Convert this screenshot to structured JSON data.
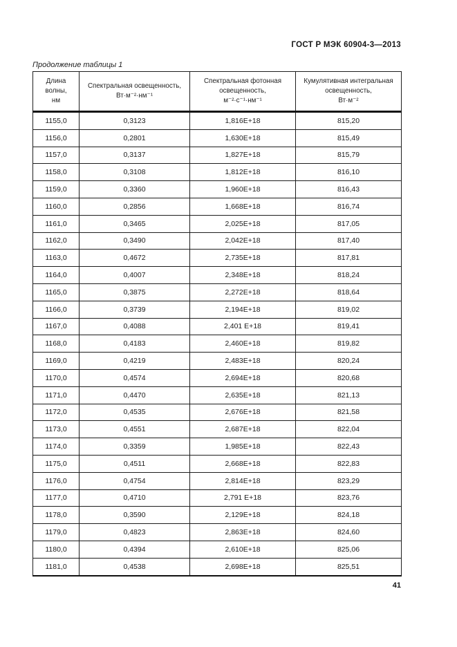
{
  "page": {
    "doc_code": "ГОСТ Р МЭК 60904-3—2013",
    "table_caption": "Продолжение таблицы 1",
    "page_number": "41"
  },
  "table": {
    "columns": [
      {
        "lines": [
          "Длина",
          "волны,",
          "нм"
        ]
      },
      {
        "lines": [
          "Спектральная освещенность,",
          "Вт·м⁻²·нм⁻¹"
        ]
      },
      {
        "lines": [
          "Спектральная фотонная",
          "освещенность,",
          "м⁻²·с⁻¹·нм⁻¹"
        ]
      },
      {
        "lines": [
          "Кумулятивная интегральная",
          "освещенность,",
          "Вт·м⁻²"
        ]
      }
    ],
    "rows": [
      [
        "1155,0",
        "0,3123",
        "1,816E+18",
        "815,20"
      ],
      [
        "1156,0",
        "0,2801",
        "1,630E+18",
        "815,49"
      ],
      [
        "1157,0",
        "0,3137",
        "1,827E+18",
        "815,79"
      ],
      [
        "1158,0",
        "0,3108",
        "1,812E+18",
        "816,10"
      ],
      [
        "1159,0",
        "0,3360",
        "1,960E+18",
        "816,43"
      ],
      [
        "1160,0",
        "0,2856",
        "1,668E+18",
        "816,74"
      ],
      [
        "1161,0",
        "0,3465",
        "2,025E+18",
        "817,05"
      ],
      [
        "1162,0",
        "0,3490",
        "2,042E+18",
        "817,40"
      ],
      [
        "1163,0",
        "0,4672",
        "2,735E+18",
        "817,81"
      ],
      [
        "1164,0",
        "0,4007",
        "2,348E+18",
        "818,24"
      ],
      [
        "1165,0",
        "0,3875",
        "2,272E+18",
        "818,64"
      ],
      [
        "1166,0",
        "0,3739",
        "2,194E+18",
        "819,02"
      ],
      [
        "1167,0",
        "0,4088",
        "2,401 E+18",
        "819,41"
      ],
      [
        "1168,0",
        "0,4183",
        "2,460E+18",
        "819,82"
      ],
      [
        "1169,0",
        "0,4219",
        "2,483E+18",
        "820,24"
      ],
      [
        "1170,0",
        "0,4574",
        "2,694E+18",
        "820,68"
      ],
      [
        "1171,0",
        "0,4470",
        "2,635E+18",
        "821,13"
      ],
      [
        "1172,0",
        "0,4535",
        "2,676E+18",
        "821,58"
      ],
      [
        "1173,0",
        "0,4551",
        "2,687E+18",
        "822,04"
      ],
      [
        "1174,0",
        "0,3359",
        "1,985E+18",
        "822,43"
      ],
      [
        "1175,0",
        "0,4511",
        "2,668E+18",
        "822,83"
      ],
      [
        "1176,0",
        "0,4754",
        "2,814E+18",
        "823,29"
      ],
      [
        "1177,0",
        "0,4710",
        "2,791 E+18",
        "823,76"
      ],
      [
        "1178,0",
        "0,3590",
        "2,129E+18",
        "824,18"
      ],
      [
        "1179,0",
        "0,4823",
        "2,863E+18",
        "824,60"
      ],
      [
        "1180,0",
        "0,4394",
        "2,610E+18",
        "825,06"
      ],
      [
        "1181,0",
        "0,4538",
        "2,698E+18",
        "825,51"
      ]
    ]
  }
}
